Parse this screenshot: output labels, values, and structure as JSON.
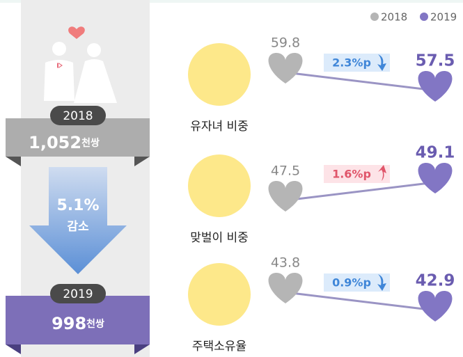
{
  "legend": [
    "2018",
    "2019"
  ],
  "summary": {
    "before": {
      "year": "2018",
      "value": "1,052",
      "unit": "천쌍"
    },
    "change": {
      "value": "5.1%",
      "label": "감소"
    },
    "after": {
      "year": "2019",
      "value": "998",
      "unit": "천쌍"
    }
  },
  "rows": [
    {
      "label": "유자녀 비중",
      "v2018": 59.8,
      "v2019": 57.5,
      "change": "2.3%p"
    },
    {
      "label": "맞벌이 비중",
      "v2018": 47.5,
      "v2019": 49.1,
      "change": "1.6%p"
    },
    {
      "label": "주택소유율",
      "v2018": 43.8,
      "v2019": 42.9,
      "change": "0.9%p"
    }
  ]
}
